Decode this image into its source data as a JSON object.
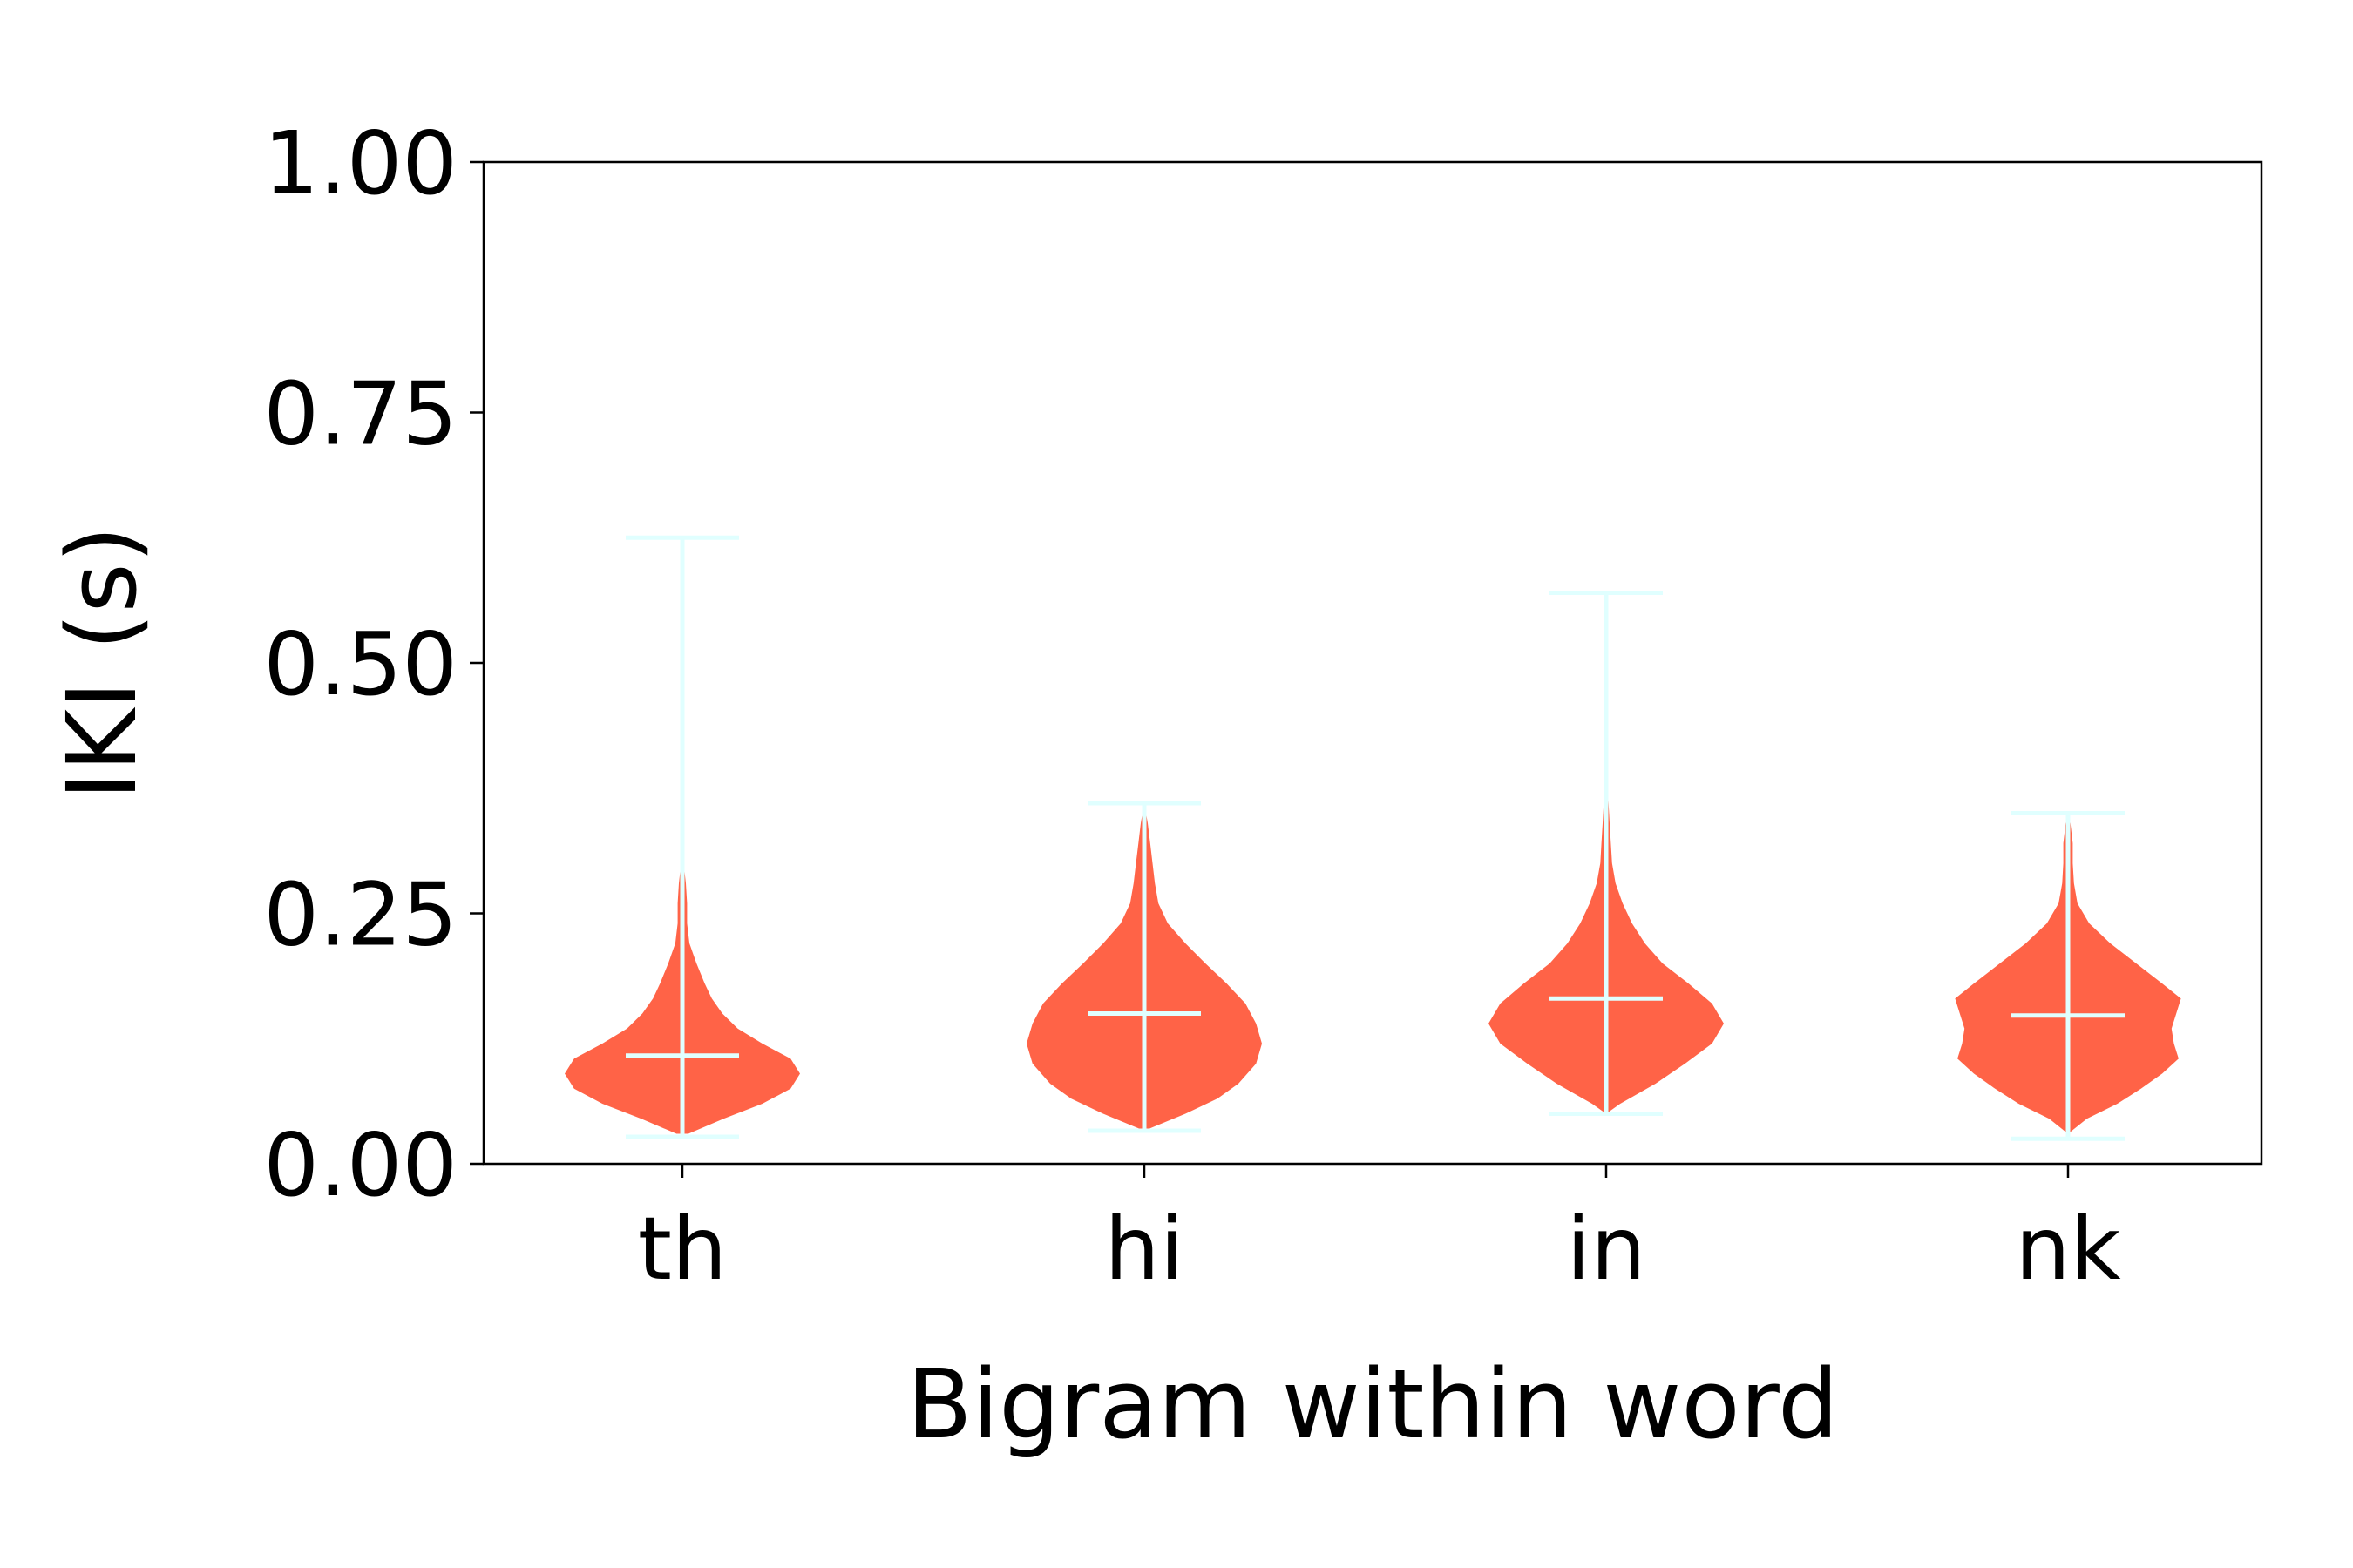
{
  "chart_data": {
    "type": "violin",
    "title": "",
    "xlabel": "Bigram within word",
    "ylabel": "IKI (s)",
    "ylim": [
      0,
      1
    ],
    "yticks": [
      "0.00",
      "0.25",
      "0.50",
      "0.75",
      "1.00"
    ],
    "ytick_values": [
      0,
      0.25,
      0.5,
      0.75,
      1.0
    ],
    "categories": [
      "th",
      "hi",
      "in",
      "nk"
    ],
    "violin_color": "#ff6347",
    "marker_color": "#e0ffff",
    "grid": false,
    "legend": "none",
    "violins": [
      {
        "category": "th",
        "min": 0.027,
        "max": 0.625,
        "mean": 0.108,
        "density": [
          [
            0.03,
            0.05
          ],
          [
            0.045,
            0.35
          ],
          [
            0.06,
            0.68
          ],
          [
            0.075,
            0.92
          ],
          [
            0.09,
            1.0
          ],
          [
            0.105,
            0.92
          ],
          [
            0.12,
            0.68
          ],
          [
            0.135,
            0.47
          ],
          [
            0.15,
            0.34
          ],
          [
            0.165,
            0.25
          ],
          [
            0.18,
            0.19
          ],
          [
            0.2,
            0.12
          ],
          [
            0.22,
            0.06
          ],
          [
            0.24,
            0.04
          ],
          [
            0.26,
            0.04
          ],
          [
            0.28,
            0.03
          ],
          [
            0.3,
            0.01
          ],
          [
            0.32,
            0.0
          ]
        ]
      },
      {
        "category": "hi",
        "min": 0.033,
        "max": 0.36,
        "mean": 0.15,
        "density": [
          [
            0.035,
            0.04
          ],
          [
            0.05,
            0.35
          ],
          [
            0.065,
            0.62
          ],
          [
            0.08,
            0.8
          ],
          [
            0.1,
            0.95
          ],
          [
            0.12,
            1.0
          ],
          [
            0.14,
            0.95
          ],
          [
            0.16,
            0.86
          ],
          [
            0.18,
            0.7
          ],
          [
            0.2,
            0.52
          ],
          [
            0.22,
            0.35
          ],
          [
            0.24,
            0.2
          ],
          [
            0.26,
            0.12
          ],
          [
            0.28,
            0.09
          ],
          [
            0.3,
            0.07
          ],
          [
            0.32,
            0.05
          ],
          [
            0.34,
            0.03
          ],
          [
            0.36,
            0.0
          ]
        ]
      },
      {
        "category": "in",
        "min": 0.05,
        "max": 0.57,
        "mean": 0.165,
        "density": [
          [
            0.05,
            0.0
          ],
          [
            0.06,
            0.12
          ],
          [
            0.08,
            0.42
          ],
          [
            0.1,
            0.67
          ],
          [
            0.12,
            0.9
          ],
          [
            0.14,
            1.0
          ],
          [
            0.16,
            0.9
          ],
          [
            0.18,
            0.7
          ],
          [
            0.2,
            0.48
          ],
          [
            0.22,
            0.33
          ],
          [
            0.24,
            0.22
          ],
          [
            0.26,
            0.14
          ],
          [
            0.28,
            0.08
          ],
          [
            0.3,
            0.05
          ],
          [
            0.32,
            0.04
          ],
          [
            0.34,
            0.03
          ],
          [
            0.36,
            0.02
          ],
          [
            0.38,
            0.01
          ],
          [
            0.4,
            0.0
          ]
        ]
      },
      {
        "category": "nk",
        "min": 0.025,
        "max": 0.35,
        "mean": 0.148,
        "density": [
          [
            0.03,
            0.0
          ],
          [
            0.045,
            0.16
          ],
          [
            0.06,
            0.42
          ],
          [
            0.075,
            0.62
          ],
          [
            0.09,
            0.8
          ],
          [
            0.105,
            0.94
          ],
          [
            0.12,
            0.9
          ],
          [
            0.135,
            0.88
          ],
          [
            0.15,
            0.92
          ],
          [
            0.165,
            0.96
          ],
          [
            0.18,
            0.8
          ],
          [
            0.2,
            0.58
          ],
          [
            0.22,
            0.36
          ],
          [
            0.24,
            0.18
          ],
          [
            0.26,
            0.08
          ],
          [
            0.28,
            0.05
          ],
          [
            0.3,
            0.04
          ],
          [
            0.32,
            0.04
          ],
          [
            0.34,
            0.02
          ],
          [
            0.35,
            0.0
          ]
        ]
      }
    ]
  }
}
